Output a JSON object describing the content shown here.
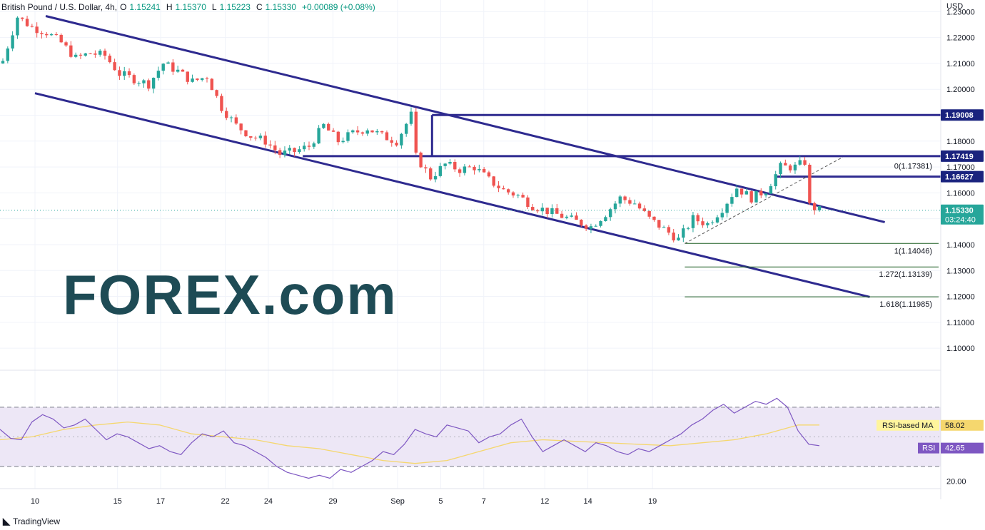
{
  "header": {
    "symbol": "British Pound / U.S. Dollar, 4h,",
    "open_label": "O",
    "open": "1.15241",
    "high_label": "H",
    "high": "1.15370",
    "low_label": "L",
    "low": "1.15223",
    "close_label": "C",
    "close": "1.15330",
    "change": "+0.00089 (+0.08%)"
  },
  "currency": "USD",
  "footer_brand": "TradingView",
  "watermark": "FOREX.com",
  "colors": {
    "up": "#26a69a",
    "down": "#ef5350",
    "channel": "#2e2a8f",
    "fib": "#1b5e20",
    "rsi": "#7e57c2",
    "rsi_ma": "#f5d76e",
    "rsi_band": "#ede7f6"
  },
  "chart_data": {
    "type": "candlestick",
    "ylim": [
      1.0915,
      1.2345
    ],
    "y_ticks": [
      "1.23000",
      "1.22000",
      "1.21000",
      "1.20000",
      "1.19000",
      "1.18000",
      "1.17000",
      "1.16000",
      "1.15000",
      "1.14000",
      "1.13000",
      "1.12000",
      "1.11000",
      "1.10000"
    ],
    "x_ticks": [
      "10",
      "15",
      "17",
      "22",
      "24",
      "29",
      "Sep",
      "5",
      "7",
      "12",
      "14",
      "19"
    ],
    "price_labels": [
      {
        "text": "1.19008",
        "price": 1.19008,
        "color": "#1a237e"
      },
      {
        "text": "1.17419",
        "price": 1.17419,
        "color": "#1a237e"
      },
      {
        "text": "1.16627",
        "price": 1.16627,
        "color": "#1a237e"
      },
      {
        "text": "1.15330",
        "price": 1.1533,
        "color": "#26a69a",
        "sub": "03:24:40"
      }
    ],
    "horizontal_lines": [
      1.19008,
      1.17419,
      1.16627
    ],
    "fib_levels": [
      {
        "label": "0(1.17381)",
        "price": 1.17381
      },
      {
        "label": "1(1.14046)",
        "price": 1.14046
      },
      {
        "label": "1.272(1.13139)",
        "price": 1.13139
      },
      {
        "label": "1.618(1.11985)",
        "price": 1.11985
      }
    ],
    "anchors": [
      {
        "label": "10",
        "xi": 0
      },
      {
        "label": "15",
        "xi": 23
      },
      {
        "label": "17",
        "xi": 35
      },
      {
        "label": "22",
        "xi": 53
      },
      {
        "label": "24",
        "xi": 65
      },
      {
        "label": "29",
        "xi": 83
      },
      {
        "label": "Sep",
        "xi": 101
      },
      {
        "label": "5",
        "xi": 113
      },
      {
        "label": "7",
        "xi": 125
      },
      {
        "label": "12",
        "xi": 142
      },
      {
        "label": "14",
        "xi": 154
      },
      {
        "label": "19",
        "xi": 172
      }
    ],
    "close_points": [
      [
        0,
        1.211
      ],
      [
        3,
        1.228
      ],
      [
        6,
        1.224
      ],
      [
        9,
        1.222
      ],
      [
        12,
        1.218
      ],
      [
        15,
        1.212
      ],
      [
        18,
        1.214
      ],
      [
        21,
        1.213
      ],
      [
        24,
        1.206
      ],
      [
        27,
        1.204
      ],
      [
        30,
        1.202
      ],
      [
        33,
        1.21
      ],
      [
        36,
        1.207
      ],
      [
        39,
        1.203
      ],
      [
        42,
        1.205
      ],
      [
        45,
        1.193
      ],
      [
        48,
        1.186
      ],
      [
        51,
        1.182
      ],
      [
        54,
        1.18
      ],
      [
        57,
        1.175
      ],
      [
        60,
        1.176
      ],
      [
        63,
        1.178
      ],
      [
        66,
        1.186
      ],
      [
        69,
        1.18
      ],
      [
        72,
        1.183
      ],
      [
        75,
        1.185
      ],
      [
        78,
        1.182
      ],
      [
        81,
        1.18
      ],
      [
        84,
        1.19
      ],
      [
        85,
        1.174
      ],
      [
        88,
        1.166
      ],
      [
        91,
        1.171
      ],
      [
        94,
        1.169
      ],
      [
        97,
        1.17
      ],
      [
        100,
        1.165
      ],
      [
        103,
        1.161
      ],
      [
        106,
        1.159
      ],
      [
        109,
        1.155
      ],
      [
        112,
        1.153
      ],
      [
        115,
        1.151
      ],
      [
        118,
        1.149
      ],
      [
        121,
        1.147
      ],
      [
        124,
        1.152
      ],
      [
        127,
        1.158
      ],
      [
        130,
        1.156
      ],
      [
        133,
        1.15
      ],
      [
        136,
        1.146
      ],
      [
        139,
        1.142
      ],
      [
        142,
        1.15
      ],
      [
        145,
        1.148
      ],
      [
        148,
        1.154
      ],
      [
        151,
        1.162
      ],
      [
        154,
        1.158
      ],
      [
        157,
        1.161
      ],
      [
        160,
        1.17
      ],
      [
        163,
        1.17
      ],
      [
        165,
        1.172
      ],
      [
        166,
        1.155
      ],
      [
        168,
        1.1533
      ]
    ],
    "rsi": {
      "ylim": [
        15,
        95
      ],
      "upper": 70,
      "lower": 30,
      "mid": 50,
      "ticks": [
        "20.00"
      ],
      "value": "42.65",
      "value_label": "RSI",
      "ma_value": "58.02",
      "ma_label": "RSI-based MA",
      "points": [
        [
          0,
          55
        ],
        [
          1,
          49
        ],
        [
          2,
          48
        ],
        [
          3,
          60
        ],
        [
          4,
          65
        ],
        [
          5,
          62
        ],
        [
          6,
          56
        ],
        [
          7,
          58
        ],
        [
          8,
          62
        ],
        [
          9,
          55
        ],
        [
          10,
          48
        ],
        [
          11,
          52
        ],
        [
          12,
          50
        ],
        [
          13,
          46
        ],
        [
          14,
          42
        ],
        [
          15,
          44
        ],
        [
          16,
          40
        ],
        [
          17,
          38
        ],
        [
          18,
          46
        ],
        [
          19,
          52
        ],
        [
          20,
          50
        ],
        [
          21,
          54
        ],
        [
          22,
          46
        ],
        [
          23,
          44
        ],
        [
          24,
          40
        ],
        [
          25,
          36
        ],
        [
          26,
          30
        ],
        [
          27,
          26
        ],
        [
          28,
          24
        ],
        [
          29,
          22
        ],
        [
          30,
          24
        ],
        [
          31,
          22
        ],
        [
          32,
          28
        ],
        [
          33,
          26
        ],
        [
          34,
          30
        ],
        [
          35,
          34
        ],
        [
          36,
          40
        ],
        [
          37,
          38
        ],
        [
          38,
          45
        ],
        [
          39,
          55
        ],
        [
          40,
          52
        ],
        [
          41,
          50
        ],
        [
          42,
          58
        ],
        [
          43,
          56
        ],
        [
          44,
          54
        ],
        [
          45,
          46
        ],
        [
          46,
          50
        ],
        [
          47,
          52
        ],
        [
          48,
          58
        ],
        [
          49,
          62
        ],
        [
          50,
          50
        ],
        [
          51,
          40
        ],
        [
          52,
          44
        ],
        [
          53,
          48
        ],
        [
          54,
          44
        ],
        [
          55,
          40
        ],
        [
          56,
          46
        ],
        [
          57,
          44
        ],
        [
          58,
          40
        ],
        [
          59,
          38
        ],
        [
          60,
          42
        ],
        [
          61,
          40
        ],
        [
          62,
          44
        ],
        [
          63,
          48
        ],
        [
          64,
          52
        ],
        [
          65,
          58
        ],
        [
          66,
          62
        ],
        [
          67,
          68
        ],
        [
          68,
          72
        ],
        [
          69,
          66
        ],
        [
          70,
          70
        ],
        [
          71,
          74
        ],
        [
          72,
          72
        ],
        [
          73,
          76
        ],
        [
          74,
          70
        ],
        [
          75,
          54
        ],
        [
          76,
          45
        ],
        [
          77,
          44
        ]
      ],
      "ma_points": [
        [
          0,
          48
        ],
        [
          3,
          50
        ],
        [
          6,
          55
        ],
        [
          9,
          58
        ],
        [
          12,
          60
        ],
        [
          15,
          58
        ],
        [
          18,
          52
        ],
        [
          21,
          50
        ],
        [
          24,
          48
        ],
        [
          27,
          44
        ],
        [
          30,
          42
        ],
        [
          33,
          38
        ],
        [
          36,
          34
        ],
        [
          39,
          32
        ],
        [
          42,
          34
        ],
        [
          45,
          40
        ],
        [
          48,
          46
        ],
        [
          51,
          48
        ],
        [
          54,
          47
        ],
        [
          57,
          46
        ],
        [
          60,
          45
        ],
        [
          63,
          44
        ],
        [
          66,
          46
        ],
        [
          69,
          48
        ],
        [
          72,
          52
        ],
        [
          75,
          58
        ],
        [
          77,
          58
        ]
      ]
    }
  }
}
